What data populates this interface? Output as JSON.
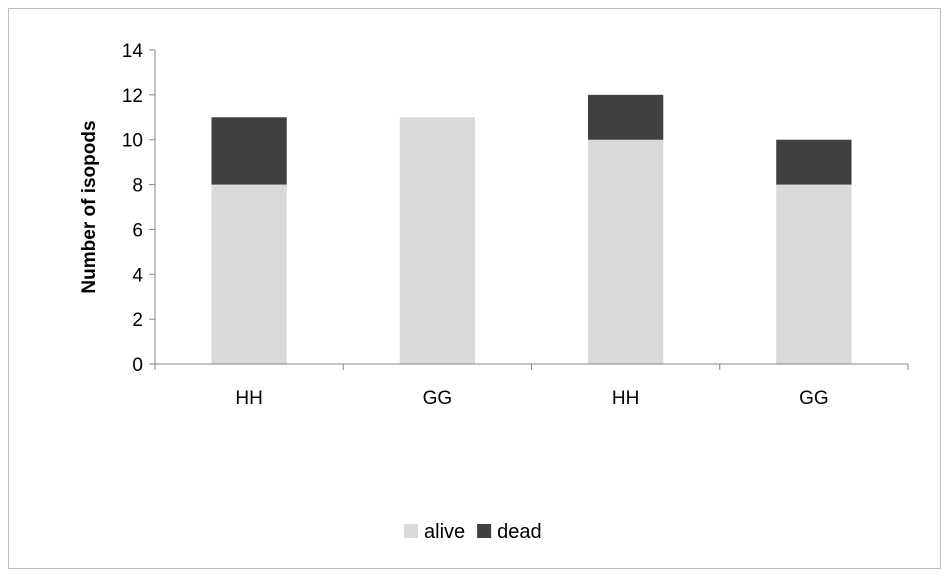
{
  "chart_data": {
    "type": "bar",
    "stacked": true,
    "categories": [
      "HH",
      "GG",
      "HH",
      "GG"
    ],
    "series": [
      {
        "name": "alive",
        "values": [
          8,
          11,
          10,
          8
        ],
        "color": "#d9d9d9"
      },
      {
        "name": "dead",
        "values": [
          3,
          0,
          2,
          2
        ],
        "color": "#404040"
      }
    ],
    "title": "",
    "xlabel": "",
    "ylabel": "Number of isopods",
    "ylim": [
      0,
      14
    ],
    "yticks": [
      0,
      2,
      4,
      6,
      8,
      10,
      12,
      14
    ],
    "grid": false,
    "legend": "bottom-center"
  }
}
